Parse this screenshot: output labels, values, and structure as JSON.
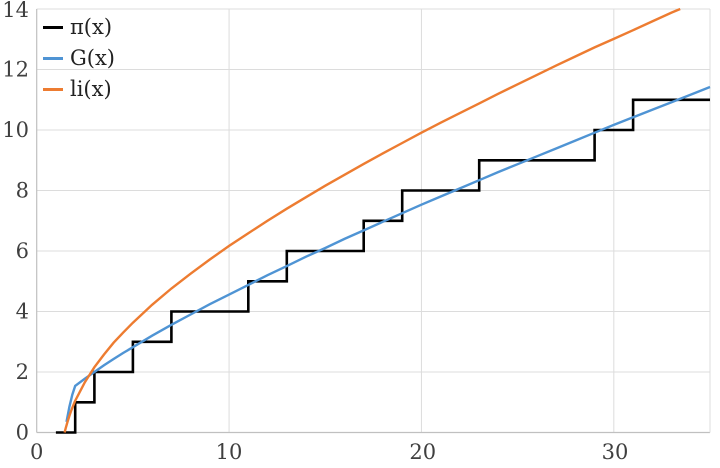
{
  "figure": {
    "title": "",
    "background": "#ffffff",
    "grid_color": "#dcdcdc",
    "axis_color": "#c0c0c0",
    "tick_text_color": "#3f3f3f"
  },
  "legend": {
    "position": "top-left",
    "items": [
      {
        "label": "π(x)",
        "color": "#000000"
      },
      {
        "label": "G(x)",
        "color": "#4f94d4"
      },
      {
        "label": "li(x)",
        "color": "#ed7c31"
      }
    ]
  },
  "axes": {
    "xlim": [
      0,
      35
    ],
    "ylim": [
      0,
      14
    ],
    "x_ticks": [
      0,
      10,
      20,
      30
    ],
    "y_ticks": [
      0,
      2,
      4,
      6,
      8,
      10,
      12,
      14
    ],
    "x_tick_labels": [
      "0",
      "10",
      "20",
      "30"
    ],
    "y_tick_labels": [
      "0",
      "2",
      "4",
      "6",
      "8",
      "10",
      "12",
      "14"
    ],
    "xlabel": "",
    "ylabel": "",
    "grid": true
  },
  "chart_data": {
    "type": "line",
    "title": "",
    "xlabel": "",
    "ylabel": "",
    "xlim": [
      0,
      35
    ],
    "ylim": [
      0,
      14
    ],
    "legend_position": "top-left",
    "grid": true,
    "series": [
      {
        "id": "pi",
        "name": "π(x)",
        "kind": "step",
        "color": "#000000",
        "width": 2.6,
        "points": [
          [
            1,
            0
          ],
          [
            2,
            0
          ],
          [
            2,
            1
          ],
          [
            3,
            1
          ],
          [
            3,
            2
          ],
          [
            5,
            2
          ],
          [
            5,
            3
          ],
          [
            7,
            3
          ],
          [
            7,
            4
          ],
          [
            11,
            4
          ],
          [
            11,
            5
          ],
          [
            13,
            5
          ],
          [
            13,
            6
          ],
          [
            17,
            6
          ],
          [
            17,
            7
          ],
          [
            19,
            7
          ],
          [
            19,
            8
          ],
          [
            23,
            8
          ],
          [
            23,
            9
          ],
          [
            29,
            9
          ],
          [
            29,
            10
          ],
          [
            31,
            10
          ],
          [
            31,
            11
          ],
          [
            35,
            11
          ]
        ]
      },
      {
        "id": "G",
        "name": "G(x)",
        "kind": "line",
        "color": "#4f94d4",
        "width": 2.4,
        "points": [
          [
            1.55,
            0.35
          ],
          [
            1.7,
            0.85
          ],
          [
            1.85,
            1.25
          ],
          [
            2,
            1.54
          ],
          [
            2.5,
            1.78
          ],
          [
            3,
            2.0
          ],
          [
            3.5,
            2.22
          ],
          [
            4,
            2.43
          ],
          [
            4.5,
            2.63
          ],
          [
            5,
            2.82
          ],
          [
            6,
            3.2
          ],
          [
            7,
            3.56
          ],
          [
            8,
            3.9
          ],
          [
            9,
            4.24
          ],
          [
            10,
            4.56
          ],
          [
            11,
            4.88
          ],
          [
            12,
            5.2
          ],
          [
            13,
            5.5
          ],
          [
            14,
            5.81
          ],
          [
            15,
            6.1
          ],
          [
            16,
            6.4
          ],
          [
            17,
            6.68
          ],
          [
            18,
            6.97
          ],
          [
            19,
            7.25
          ],
          [
            20,
            7.53
          ],
          [
            21,
            7.8
          ],
          [
            22,
            8.07
          ],
          [
            23,
            8.34
          ],
          [
            24,
            8.61
          ],
          [
            25,
            8.87
          ],
          [
            26,
            9.13
          ],
          [
            27,
            9.39
          ],
          [
            28,
            9.65
          ],
          [
            29,
            9.91
          ],
          [
            30,
            10.17
          ],
          [
            31,
            10.42
          ],
          [
            32,
            10.67
          ],
          [
            33,
            10.92
          ],
          [
            34,
            11.17
          ],
          [
            35,
            11.42
          ]
        ]
      },
      {
        "id": "li",
        "name": "li(x)",
        "kind": "line",
        "color": "#ed7c31",
        "width": 2.4,
        "points": [
          [
            1.45,
            0
          ],
          [
            1.5,
            0.13
          ],
          [
            1.6,
            0.35
          ],
          [
            1.7,
            0.55
          ],
          [
            1.8,
            0.73
          ],
          [
            1.9,
            0.9
          ],
          [
            2,
            1.05
          ],
          [
            2.5,
            1.66
          ],
          [
            3,
            2.16
          ],
          [
            3.5,
            2.58
          ],
          [
            4,
            2.97
          ],
          [
            4.5,
            3.31
          ],
          [
            5,
            3.63
          ],
          [
            6,
            4.22
          ],
          [
            7,
            4.76
          ],
          [
            8,
            5.25
          ],
          [
            9,
            5.72
          ],
          [
            10,
            6.17
          ],
          [
            11,
            6.59
          ],
          [
            12,
            7.0
          ],
          [
            13,
            7.4
          ],
          [
            14,
            7.78
          ],
          [
            15,
            8.16
          ],
          [
            16,
            8.52
          ],
          [
            17,
            8.88
          ],
          [
            18,
            9.23
          ],
          [
            19,
            9.57
          ],
          [
            20,
            9.91
          ],
          [
            21,
            10.24
          ],
          [
            22,
            10.56
          ],
          [
            23,
            10.88
          ],
          [
            24,
            11.2
          ],
          [
            25,
            11.51
          ],
          [
            26,
            11.82
          ],
          [
            27,
            12.13
          ],
          [
            28,
            12.43
          ],
          [
            29,
            12.73
          ],
          [
            30,
            13.01
          ],
          [
            31,
            13.3
          ],
          [
            32,
            13.59
          ],
          [
            33,
            13.88
          ],
          [
            33.45,
            14.0
          ]
        ]
      }
    ]
  }
}
